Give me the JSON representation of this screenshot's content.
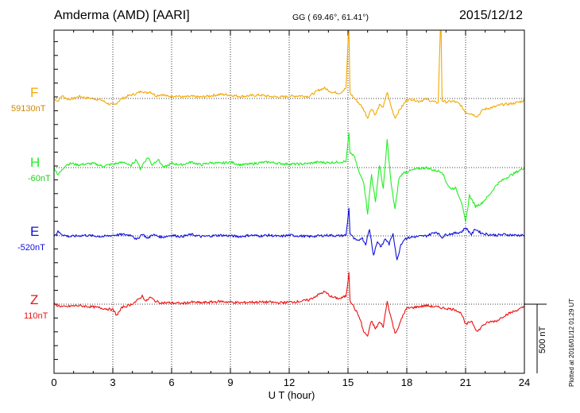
{
  "header": {
    "station": "Amderma (AMD)  [AARI]",
    "gg": "GG ( 69.46°,  61.41°)",
    "date": "2015/12/12"
  },
  "plotted_note": "Plotted at 2016/01/12 01:29 UT",
  "scale_bar": "500 nT",
  "chart_data": {
    "type": "line",
    "title": "Amderma (AMD)  [AARI]",
    "xlabel": "U T (hour)",
    "ylabel": "",
    "xlim": [
      0,
      24
    ],
    "xticks": [
      "0",
      "3",
      "6",
      "9",
      "12",
      "15",
      "18",
      "21",
      "24"
    ],
    "grid": true,
    "scale_nT": 500,
    "series": [
      {
        "name": "F",
        "baseline_label": "59130nT",
        "color": "#f4a800",
        "points": [
          [
            0,
            0
          ],
          [
            0.2,
            -20
          ],
          [
            0.4,
            20
          ],
          [
            0.7,
            -5
          ],
          [
            1.0,
            0
          ],
          [
            1.3,
            15
          ],
          [
            1.6,
            5
          ],
          [
            2.0,
            0
          ],
          [
            2.4,
            -10
          ],
          [
            2.8,
            -40
          ],
          [
            3.1,
            -45
          ],
          [
            3.4,
            -5
          ],
          [
            3.8,
            20
          ],
          [
            4.2,
            35
          ],
          [
            4.5,
            55
          ],
          [
            4.7,
            40
          ],
          [
            4.9,
            50
          ],
          [
            5.2,
            20
          ],
          [
            5.5,
            30
          ],
          [
            5.8,
            15
          ],
          [
            6.2,
            20
          ],
          [
            6.6,
            10
          ],
          [
            7.0,
            15
          ],
          [
            7.5,
            10
          ],
          [
            8.0,
            20
          ],
          [
            8.5,
            30
          ],
          [
            9.0,
            25
          ],
          [
            9.5,
            15
          ],
          [
            10.0,
            20
          ],
          [
            10.5,
            25
          ],
          [
            11.0,
            15
          ],
          [
            11.5,
            10
          ],
          [
            12.0,
            15
          ],
          [
            12.5,
            20
          ],
          [
            13.0,
            15
          ],
          [
            13.5,
            60
          ],
          [
            13.8,
            75
          ],
          [
            14.2,
            45
          ],
          [
            14.6,
            40
          ],
          [
            14.9,
            75
          ],
          [
            15.05,
            570
          ],
          [
            15.1,
            40
          ],
          [
            15.3,
            5
          ],
          [
            15.6,
            -40
          ],
          [
            15.8,
            -80
          ],
          [
            16.0,
            -140
          ],
          [
            16.2,
            -70
          ],
          [
            16.4,
            -120
          ],
          [
            16.6,
            -50
          ],
          [
            16.8,
            -60
          ],
          [
            17.0,
            45
          ],
          [
            17.2,
            -60
          ],
          [
            17.4,
            -140
          ],
          [
            17.6,
            -90
          ],
          [
            17.8,
            -50
          ],
          [
            18.0,
            -10
          ],
          [
            18.3,
            -5
          ],
          [
            18.6,
            -20
          ],
          [
            19.0,
            -5
          ],
          [
            19.4,
            -25
          ],
          [
            19.6,
            -30
          ],
          [
            19.75,
            670
          ],
          [
            19.8,
            -15
          ],
          [
            20.0,
            -25
          ],
          [
            20.4,
            -20
          ],
          [
            20.7,
            -40
          ],
          [
            21.0,
            -100
          ],
          [
            21.3,
            -110
          ],
          [
            21.6,
            -130
          ],
          [
            21.9,
            -80
          ],
          [
            22.2,
            -70
          ],
          [
            22.5,
            -60
          ],
          [
            22.8,
            -45
          ],
          [
            23.2,
            -40
          ],
          [
            23.6,
            -30
          ],
          [
            24,
            -15
          ]
        ]
      },
      {
        "name": "H",
        "baseline_label": "-60nT",
        "color": "#22ee22",
        "points": [
          [
            0,
            0
          ],
          [
            0.2,
            -50
          ],
          [
            0.4,
            -20
          ],
          [
            0.6,
            20
          ],
          [
            0.9,
            30
          ],
          [
            1.2,
            20
          ],
          [
            1.6,
            25
          ],
          [
            2.0,
            30
          ],
          [
            2.5,
            10
          ],
          [
            2.8,
            20
          ],
          [
            3.2,
            30
          ],
          [
            3.6,
            40
          ],
          [
            3.9,
            10
          ],
          [
            4.2,
            60
          ],
          [
            4.4,
            -10
          ],
          [
            4.6,
            40
          ],
          [
            4.8,
            75
          ],
          [
            5.0,
            20
          ],
          [
            5.3,
            60
          ],
          [
            5.6,
            0
          ],
          [
            6.0,
            30
          ],
          [
            6.5,
            20
          ],
          [
            7.0,
            40
          ],
          [
            7.5,
            20
          ],
          [
            8.0,
            35
          ],
          [
            8.5,
            30
          ],
          [
            9.0,
            40
          ],
          [
            9.5,
            20
          ],
          [
            10.0,
            25
          ],
          [
            10.5,
            35
          ],
          [
            11.0,
            40
          ],
          [
            11.5,
            30
          ],
          [
            12.0,
            25
          ],
          [
            12.5,
            25
          ],
          [
            13.0,
            30
          ],
          [
            13.5,
            40
          ],
          [
            14.0,
            35
          ],
          [
            14.5,
            40
          ],
          [
            14.9,
            45
          ],
          [
            15.05,
            250
          ],
          [
            15.1,
            100
          ],
          [
            15.3,
            90
          ],
          [
            15.6,
            -50
          ],
          [
            15.8,
            -100
          ],
          [
            16.0,
            -330
          ],
          [
            16.2,
            -50
          ],
          [
            16.4,
            -250
          ],
          [
            16.6,
            20
          ],
          [
            16.8,
            -150
          ],
          [
            17.0,
            200
          ],
          [
            17.2,
            -120
          ],
          [
            17.4,
            -300
          ],
          [
            17.6,
            -80
          ],
          [
            17.8,
            -40
          ],
          [
            18.0,
            -30
          ],
          [
            18.5,
            -10
          ],
          [
            19.0,
            0
          ],
          [
            19.4,
            -20
          ],
          [
            19.8,
            -30
          ],
          [
            20.0,
            -100
          ],
          [
            20.2,
            -150
          ],
          [
            20.5,
            -150
          ],
          [
            20.8,
            -250
          ],
          [
            21.0,
            -400
          ],
          [
            21.2,
            -200
          ],
          [
            21.5,
            -280
          ],
          [
            21.8,
            -260
          ],
          [
            22.2,
            -200
          ],
          [
            22.6,
            -120
          ],
          [
            23.0,
            -80
          ],
          [
            23.5,
            -40
          ],
          [
            24,
            0
          ]
        ]
      },
      {
        "name": "E",
        "baseline_label": "-520nT",
        "color": "#1010dd",
        "points": [
          [
            0,
            0
          ],
          [
            0.2,
            30
          ],
          [
            0.5,
            5
          ],
          [
            0.8,
            -5
          ],
          [
            1.2,
            0
          ],
          [
            1.6,
            5
          ],
          [
            2.0,
            0
          ],
          [
            2.5,
            -5
          ],
          [
            3.0,
            5
          ],
          [
            3.5,
            10
          ],
          [
            4.0,
            5
          ],
          [
            4.2,
            -30
          ],
          [
            4.5,
            15
          ],
          [
            4.8,
            -20
          ],
          [
            5.0,
            10
          ],
          [
            5.5,
            -10
          ],
          [
            6.0,
            5
          ],
          [
            6.5,
            -5
          ],
          [
            7.0,
            10
          ],
          [
            7.5,
            -5
          ],
          [
            8.0,
            0
          ],
          [
            8.5,
            5
          ],
          [
            9.0,
            0
          ],
          [
            9.5,
            -5
          ],
          [
            10.0,
            5
          ],
          [
            10.5,
            0
          ],
          [
            11.0,
            5
          ],
          [
            11.5,
            -5
          ],
          [
            12.0,
            5
          ],
          [
            12.5,
            0
          ],
          [
            13.0,
            -5
          ],
          [
            13.5,
            0
          ],
          [
            14.0,
            5
          ],
          [
            14.5,
            0
          ],
          [
            14.9,
            5
          ],
          [
            15.05,
            200
          ],
          [
            15.1,
            20
          ],
          [
            15.3,
            -20
          ],
          [
            15.5,
            -40
          ],
          [
            15.7,
            -10
          ],
          [
            15.9,
            -60
          ],
          [
            16.1,
            50
          ],
          [
            16.3,
            -140
          ],
          [
            16.5,
            -40
          ],
          [
            16.7,
            -80
          ],
          [
            16.9,
            -20
          ],
          [
            17.1,
            -60
          ],
          [
            17.3,
            20
          ],
          [
            17.5,
            -180
          ],
          [
            17.7,
            -60
          ],
          [
            17.9,
            -20
          ],
          [
            18.2,
            -10
          ],
          [
            18.5,
            -5
          ],
          [
            19.0,
            0
          ],
          [
            19.5,
            30
          ],
          [
            19.8,
            -10
          ],
          [
            20.0,
            10
          ],
          [
            20.5,
            20
          ],
          [
            20.8,
            30
          ],
          [
            21.0,
            60
          ],
          [
            21.3,
            10
          ],
          [
            21.5,
            50
          ],
          [
            21.8,
            20
          ],
          [
            22.2,
            10
          ],
          [
            22.6,
            5
          ],
          [
            23.0,
            10
          ],
          [
            23.5,
            5
          ],
          [
            24,
            5
          ]
        ]
      },
      {
        "name": "Z",
        "baseline_label": "110nT",
        "color": "#ee1111",
        "points": [
          [
            0,
            0
          ],
          [
            0.2,
            -10
          ],
          [
            0.5,
            -20
          ],
          [
            0.8,
            -15
          ],
          [
            1.2,
            -10
          ],
          [
            1.6,
            -15
          ],
          [
            2.0,
            -20
          ],
          [
            2.5,
            -30
          ],
          [
            3.0,
            -40
          ],
          [
            3.2,
            -80
          ],
          [
            3.5,
            -20
          ],
          [
            3.8,
            -10
          ],
          [
            4.2,
            20
          ],
          [
            4.5,
            60
          ],
          [
            4.7,
            20
          ],
          [
            4.9,
            50
          ],
          [
            5.2,
            20
          ],
          [
            5.5,
            10
          ],
          [
            6.0,
            10
          ],
          [
            6.5,
            5
          ],
          [
            7.0,
            15
          ],
          [
            7.5,
            10
          ],
          [
            8.0,
            15
          ],
          [
            8.5,
            20
          ],
          [
            9.0,
            15
          ],
          [
            9.5,
            10
          ],
          [
            10.0,
            15
          ],
          [
            10.5,
            15
          ],
          [
            11.0,
            15
          ],
          [
            11.5,
            10
          ],
          [
            12.0,
            15
          ],
          [
            12.5,
            20
          ],
          [
            13.0,
            30
          ],
          [
            13.5,
            70
          ],
          [
            13.8,
            90
          ],
          [
            14.2,
            50
          ],
          [
            14.6,
            40
          ],
          [
            14.9,
            60
          ],
          [
            15.05,
            230
          ],
          [
            15.1,
            30
          ],
          [
            15.3,
            -20
          ],
          [
            15.6,
            -100
          ],
          [
            15.8,
            -200
          ],
          [
            16.0,
            -230
          ],
          [
            16.2,
            -120
          ],
          [
            16.4,
            -180
          ],
          [
            16.6,
            -130
          ],
          [
            16.8,
            -160
          ],
          [
            17.0,
            20
          ],
          [
            17.2,
            -100
          ],
          [
            17.4,
            -210
          ],
          [
            17.6,
            -160
          ],
          [
            17.8,
            -80
          ],
          [
            18.0,
            -30
          ],
          [
            18.5,
            -20
          ],
          [
            19.0,
            -10
          ],
          [
            19.5,
            -20
          ],
          [
            20.0,
            -30
          ],
          [
            20.5,
            -40
          ],
          [
            20.8,
            -70
          ],
          [
            21.0,
            -150
          ],
          [
            21.3,
            -120
          ],
          [
            21.6,
            -200
          ],
          [
            21.9,
            -150
          ],
          [
            22.2,
            -130
          ],
          [
            22.6,
            -120
          ],
          [
            23.0,
            -80
          ],
          [
            23.5,
            -50
          ],
          [
            24,
            -20
          ]
        ]
      }
    ]
  }
}
